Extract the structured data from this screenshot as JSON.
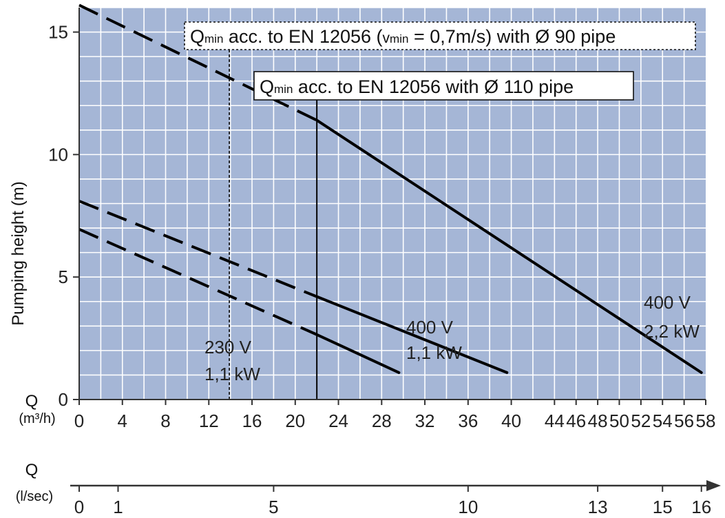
{
  "chart_data": {
    "type": "line",
    "ylabel": "Pumping height (m)",
    "y_axis_label": "Q",
    "x_unit_label": "(m³/h)",
    "x2_axis_label": "Q",
    "x2_unit_label": "(l/sec)",
    "xlim": [
      0,
      58
    ],
    "ylim": [
      0,
      16
    ],
    "x_ticks": [
      "0",
      "4",
      "8",
      "12",
      "16",
      "20",
      "24",
      "28",
      "32",
      "36",
      "40",
      "44",
      "46",
      "48",
      "50",
      "52",
      "54",
      "56",
      "58"
    ],
    "y_ticks": [
      0,
      5,
      10,
      15
    ],
    "x2_ticks": [
      {
        "label": "0",
        "at": 0
      },
      {
        "label": "1",
        "at": 3.6
      },
      {
        "label": "5",
        "at": 18
      },
      {
        "label": "10",
        "at": 36
      },
      {
        "label": "13",
        "at": 48
      },
      {
        "label": "15",
        "at": 54
      },
      {
        "label": "16",
        "at": 57.6
      }
    ],
    "grid": true,
    "series": [
      {
        "name_line1": "400 V",
        "name_line2": "2,2 kW",
        "dashed_segment": [
          [
            0,
            16.1
          ],
          [
            22,
            11.4
          ]
        ],
        "solid_segment": [
          [
            22,
            11.4
          ],
          [
            57.6,
            1.1
          ]
        ]
      },
      {
        "name_line1": "400 V",
        "name_line2": "1,1 kW",
        "dashed_segment": [
          [
            0,
            8.1
          ],
          [
            22,
            4.2
          ]
        ],
        "solid_segment": [
          [
            22,
            4.2
          ],
          [
            39.6,
            1.1
          ]
        ]
      },
      {
        "name_line1": "230 V",
        "name_line2": "1,1 kW",
        "dashed_segment": [
          [
            0,
            6.95
          ],
          [
            22,
            2.65
          ]
        ],
        "solid_segment": [
          [
            22,
            2.65
          ],
          [
            29.6,
            1.1
          ]
        ]
      }
    ],
    "annotations": [
      {
        "q": "Q",
        "sub": "min",
        "text": " acc. to EN 12056 (",
        "v": "v",
        "vsub": "min",
        "text2": " = 0,7m/s) with Ø 90 pipe",
        "x": 13.9,
        "style": "dashed"
      },
      {
        "q": "Q",
        "sub": "min",
        "text": " acc. to EN 12056 with Ø 110 pipe",
        "x": 22,
        "style": "solid"
      }
    ]
  }
}
